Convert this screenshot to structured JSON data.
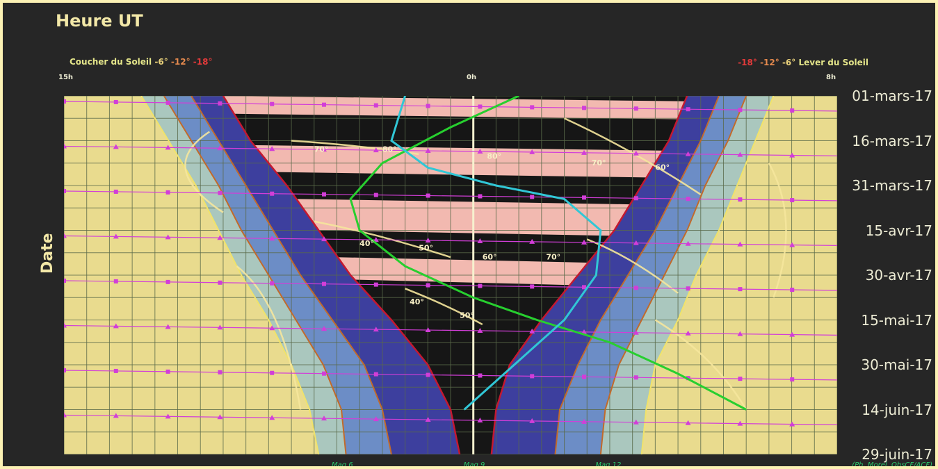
{
  "chart_data": {
    "type": "area",
    "title": "Heure UT",
    "ylabel": "Date",
    "x_axis": {
      "start_label": "15h",
      "mid_label": "0h",
      "end_label": "8h",
      "start_hour": 15,
      "end_hour": 32
    },
    "dates": [
      "01-mars-17",
      "16-mars-17",
      "31-mars-17",
      "15-avr-17",
      "30-avr-17",
      "15-mai-17",
      "30-mai-17",
      "14-juin-17",
      "29-juin-17"
    ],
    "twilight_legend": {
      "evening_label": "Coucher du Soleil",
      "evening_levels": [
        "-6°",
        "-12°",
        "-18°"
      ],
      "morning_levels": [
        "-18°",
        "-12°",
        "-6°"
      ],
      "morning_label": "Lever du Soleil"
    },
    "twilight_boundaries_hours": {
      "sunset": [
        16.7,
        17.3,
        17.9,
        18.4,
        18.9,
        19.5,
        20.0,
        20.4,
        20.6
      ],
      "civil_evening": [
        17.2,
        17.8,
        18.4,
        18.9,
        19.5,
        20.1,
        20.7,
        21.1,
        21.2
      ],
      "nautical_evening": [
        17.8,
        18.4,
        19.0,
        19.6,
        20.2,
        20.9,
        21.6,
        22.0,
        22.2
      ],
      "astro_evening": [
        18.5,
        19.1,
        19.9,
        20.6,
        21.3,
        22.2,
        23.0,
        23.5,
        23.7
      ],
      "astro_morning": [
        28.7,
        28.3,
        27.7,
        27.1,
        26.3,
        25.5,
        24.8,
        24.5,
        24.4
      ],
      "nautical_morning": [
        29.4,
        29.0,
        28.5,
        28.0,
        27.4,
        26.8,
        26.3,
        25.9,
        25.8
      ],
      "civil_morning": [
        30.0,
        29.6,
        29.1,
        28.7,
        28.2,
        27.7,
        27.2,
        26.9,
        26.8
      ],
      "sunrise": [
        30.6,
        30.2,
        29.8,
        29.4,
        28.9,
        28.5,
        28.0,
        27.8,
        27.7
      ]
    },
    "moon_bands": [
      {
        "date_from": 0.0,
        "date_to": 0.4
      },
      {
        "date_from": 1.1,
        "date_to": 1.7
      },
      {
        "date_from": 2.3,
        "date_to": 3.0
      },
      {
        "date_from": 3.6,
        "date_to": 4.1
      }
    ],
    "altitude_labels": [
      {
        "text": "70°",
        "hour": 20.5,
        "date": 1.25
      },
      {
        "text": "80°",
        "hour": 22.0,
        "date": 1.25
      },
      {
        "text": "80°",
        "hour": 24.3,
        "date": 1.4
      },
      {
        "text": "70°",
        "hour": 26.6,
        "date": 1.55
      },
      {
        "text": "60°",
        "hour": 28.0,
        "date": 1.65
      },
      {
        "text": "40°",
        "hour": 21.5,
        "date": 3.35
      },
      {
        "text": "50°",
        "hour": 22.8,
        "date": 3.45
      },
      {
        "text": "60°",
        "hour": 24.2,
        "date": 3.65
      },
      {
        "text": "70°",
        "hour": 25.6,
        "date": 3.65
      },
      {
        "text": "40°",
        "hour": 22.6,
        "date": 4.65
      },
      {
        "text": "50°",
        "hour": 23.7,
        "date": 4.95
      }
    ],
    "magnitude_limits": [
      {
        "label": "Mag 6",
        "hour": 21.1
      },
      {
        "label": "Mag 9",
        "hour": 24.0
      },
      {
        "label": "Mag 12",
        "hour": 26.9
      }
    ],
    "green_track": [
      [
        25.0,
        0.0
      ],
      [
        23.5,
        0.7
      ],
      [
        22.0,
        1.5
      ],
      [
        21.3,
        2.3
      ],
      [
        21.5,
        3.0
      ],
      [
        22.5,
        3.8
      ],
      [
        24.0,
        4.5
      ],
      [
        25.4,
        5.0
      ],
      [
        27.0,
        5.5
      ],
      [
        28.5,
        6.2
      ],
      [
        30.0,
        7.0
      ]
    ],
    "cyan_track": [
      [
        22.5,
        0.0
      ],
      [
        22.2,
        1.0
      ],
      [
        23.0,
        1.6
      ],
      [
        24.5,
        2.0
      ],
      [
        26.0,
        2.3
      ],
      [
        26.8,
        3.0
      ],
      [
        26.7,
        4.0
      ],
      [
        26.0,
        5.0
      ],
      [
        24.9,
        6.0
      ],
      [
        23.8,
        7.0
      ]
    ],
    "credit": "(Ph. Morel, ObsCF/ACF)",
    "colors": {
      "day": "#e9db8e",
      "civil": "#aac7be",
      "nautical": "#6c8dc6",
      "astro": "#3d3f9e",
      "night": "#161616",
      "moon": "#f2b9b0",
      "grid": "#5a6a4a",
      "twilight_line": "#c26a2a",
      "astro_line": "#c41830",
      "green": "#27cf2f",
      "cyan": "#31c7d6",
      "magenta": "#d23ed8",
      "altitude": "#f5e59c"
    }
  }
}
